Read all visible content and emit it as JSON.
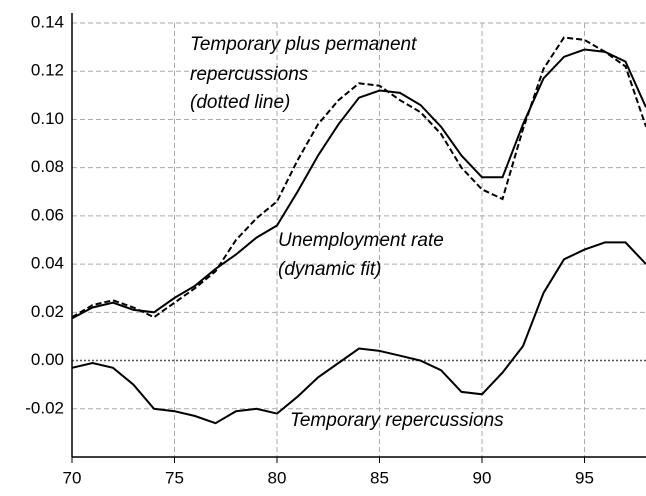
{
  "chart_data": {
    "type": "line",
    "annotations": [
      "Temporary plus permanent",
      "repercussions",
      "(dotted line)",
      "Unemployment rate",
      "(dynamic fit)",
      "Temporary repercussions"
    ],
    "x": [
      70,
      71,
      72,
      73,
      74,
      75,
      76,
      77,
      78,
      79,
      80,
      81,
      82,
      83,
      84,
      85,
      86,
      87,
      88,
      89,
      90,
      91,
      92,
      93,
      94,
      95,
      96,
      97,
      98
    ],
    "series": [
      {
        "color": "#000000",
        "style": "solid",
        "values": [
          0.0175,
          0.022,
          0.024,
          0.021,
          0.02,
          0.026,
          0.031,
          0.038,
          0.044,
          0.051,
          0.056,
          0.07,
          0.085,
          0.098,
          0.109,
          0.112,
          0.111,
          0.106,
          0.097,
          0.085,
          0.076,
          0.076,
          0.098,
          0.117,
          0.126,
          0.129,
          0.128,
          0.124,
          0.105
        ]
      },
      {
        "color": "#000000",
        "style": "dashed",
        "values": [
          0.018,
          0.023,
          0.025,
          0.022,
          0.018,
          0.024,
          0.03,
          0.037,
          0.05,
          0.059,
          0.066,
          0.083,
          0.098,
          0.108,
          0.115,
          0.114,
          0.108,
          0.103,
          0.094,
          0.08,
          0.071,
          0.067,
          0.096,
          0.121,
          0.134,
          0.133,
          0.128,
          0.122,
          0.097
        ]
      },
      {
        "color": "#000000",
        "style": "solid",
        "values": [
          -0.003,
          -0.001,
          -0.003,
          -0.01,
          -0.02,
          -0.021,
          -0.023,
          -0.026,
          -0.021,
          -0.02,
          -0.022,
          -0.015,
          -0.007,
          -0.001,
          0.005,
          0.004,
          0.002,
          0.0,
          -0.004,
          -0.013,
          -0.014,
          -0.005,
          0.006,
          0.028,
          0.042,
          0.046,
          0.049,
          0.049,
          0.04
        ]
      }
    ],
    "xlim": [
      70,
      98
    ],
    "xticks": [
      70,
      75,
      80,
      85,
      90,
      95
    ],
    "ylim": [
      -0.04,
      0.14
    ],
    "yticks": [
      -0.02,
      {
        "value": 0,
        "label": "0.00"
      },
      0.02,
      0.04,
      0.06,
      0.08,
      {
        "value": 0.1,
        "label": "0.10"
      },
      0.12,
      0.14
    ],
    "grid": true
  }
}
